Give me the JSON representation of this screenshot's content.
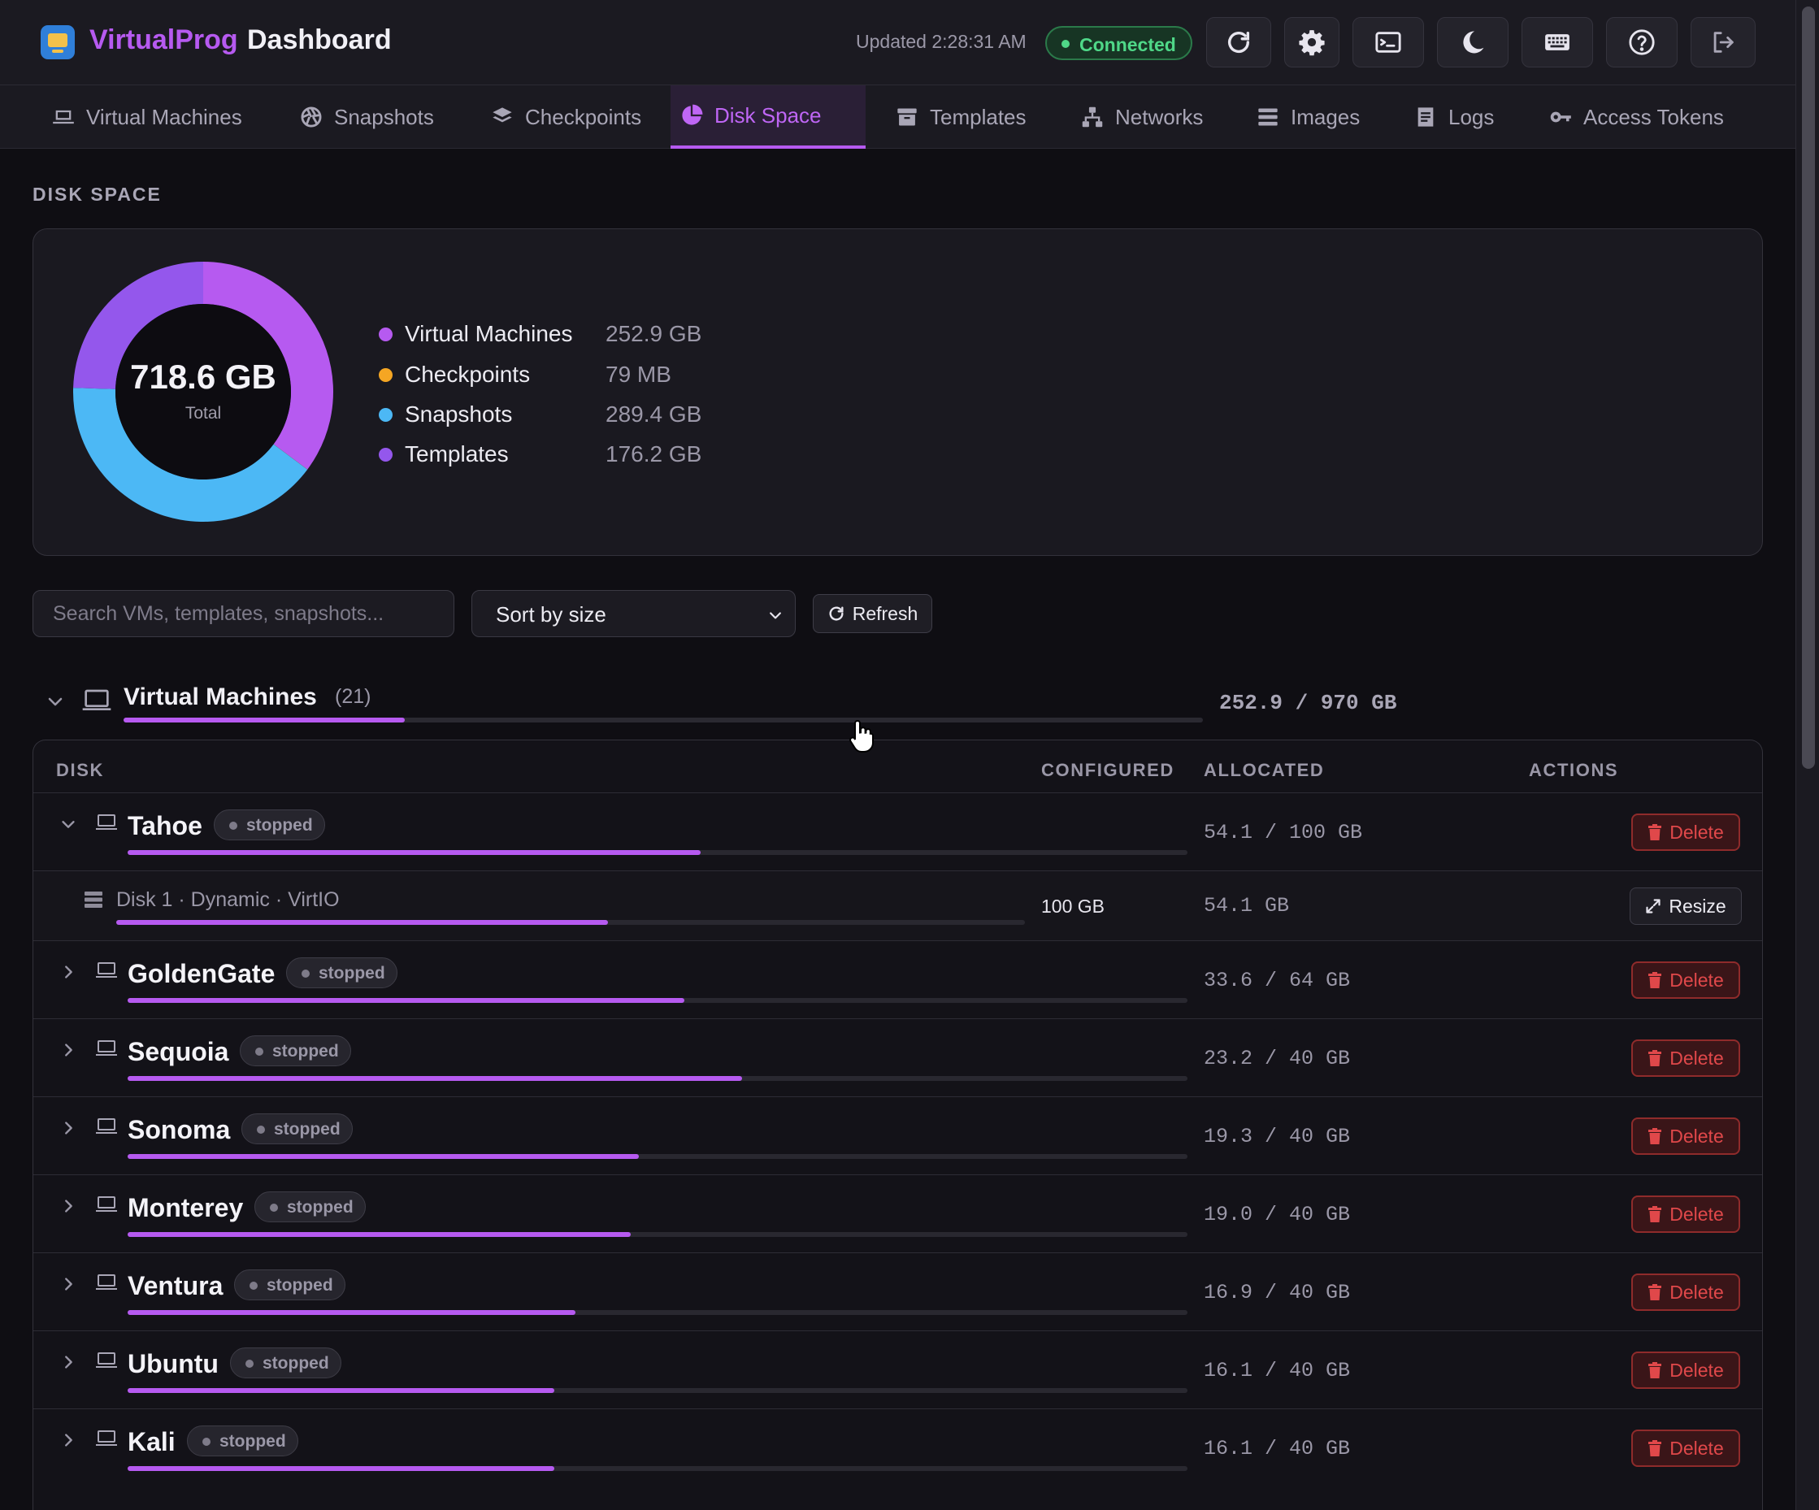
{
  "header": {
    "brand": "VirtualProg",
    "page": "Dashboard",
    "updated": "Updated 2:28:31 AM",
    "status": "Connected"
  },
  "toolbar_icons": [
    "refresh-icon",
    "gear-icon",
    "terminal-icon",
    "moon-icon",
    "keyboard-icon",
    "help-icon",
    "logout-icon"
  ],
  "tabs": [
    {
      "label": "Virtual Machines",
      "icon": "laptop-icon"
    },
    {
      "label": "Snapshots",
      "icon": "aperture-icon"
    },
    {
      "label": "Checkpoints",
      "icon": "layers-icon"
    },
    {
      "label": "Disk Space",
      "icon": "pie-chart-icon",
      "active": true
    },
    {
      "label": "Templates",
      "icon": "archive-icon"
    },
    {
      "label": "Networks",
      "icon": "network-icon"
    },
    {
      "label": "Images",
      "icon": "list-icon"
    },
    {
      "label": "Logs",
      "icon": "log-icon"
    },
    {
      "label": "Access Tokens",
      "icon": "key-icon"
    }
  ],
  "section_title": "DISK SPACE",
  "summary": {
    "total": "718.6 GB",
    "total_label": "Total",
    "items": [
      {
        "name": "Virtual Machines",
        "value": "252.9 GB",
        "color": "#b65af0"
      },
      {
        "name": "Checkpoints",
        "value": "79 MB",
        "color": "#f5a623"
      },
      {
        "name": "Snapshots",
        "value": "289.4 GB",
        "color": "#4cb8f5"
      },
      {
        "name": "Templates",
        "value": "176.2 GB",
        "color": "#9457ec"
      }
    ]
  },
  "controls": {
    "search_placeholder": "Search VMs, templates, snapshots...",
    "sort_value": "Sort by size",
    "refresh_label": "Refresh"
  },
  "vm_group": {
    "title": "Virtual Machines",
    "count": "(21)",
    "usage": "252.9 / 970 GB",
    "usage_fraction": 0.2607
  },
  "table": {
    "headers": {
      "disk": "DISK",
      "configured": "CONFIGURED",
      "allocated": "ALLOCATED",
      "actions": "ACTIONS"
    },
    "delete_label": "Delete",
    "resize_label": "Resize",
    "rows": [
      {
        "name": "Tahoe",
        "status": "stopped",
        "allocated": "54.1 / 100 GB",
        "fraction": 0.541,
        "expanded": true,
        "disk": {
          "label": "Disk 1 · Dynamic · VirtIO",
          "configured": "100 GB",
          "allocated": "54.1 GB",
          "fraction": 0.541
        }
      },
      {
        "name": "GoldenGate",
        "status": "stopped",
        "allocated": "33.6 / 64 GB",
        "fraction": 0.525
      },
      {
        "name": "Sequoia",
        "status": "stopped",
        "allocated": "23.2 / 40 GB",
        "fraction": 0.58
      },
      {
        "name": "Sonoma",
        "status": "stopped",
        "allocated": "19.3 / 40 GB",
        "fraction": 0.4825
      },
      {
        "name": "Monterey",
        "status": "stopped",
        "allocated": "19.0 / 40 GB",
        "fraction": 0.475
      },
      {
        "name": "Ventura",
        "status": "stopped",
        "allocated": "16.9 / 40 GB",
        "fraction": 0.4225
      },
      {
        "name": "Ubuntu",
        "status": "stopped",
        "allocated": "16.1 / 40 GB",
        "fraction": 0.4025
      },
      {
        "name": "Kali",
        "status": "stopped",
        "allocated": "16.1 / 40 GB",
        "fraction": 0.4025
      }
    ]
  }
}
